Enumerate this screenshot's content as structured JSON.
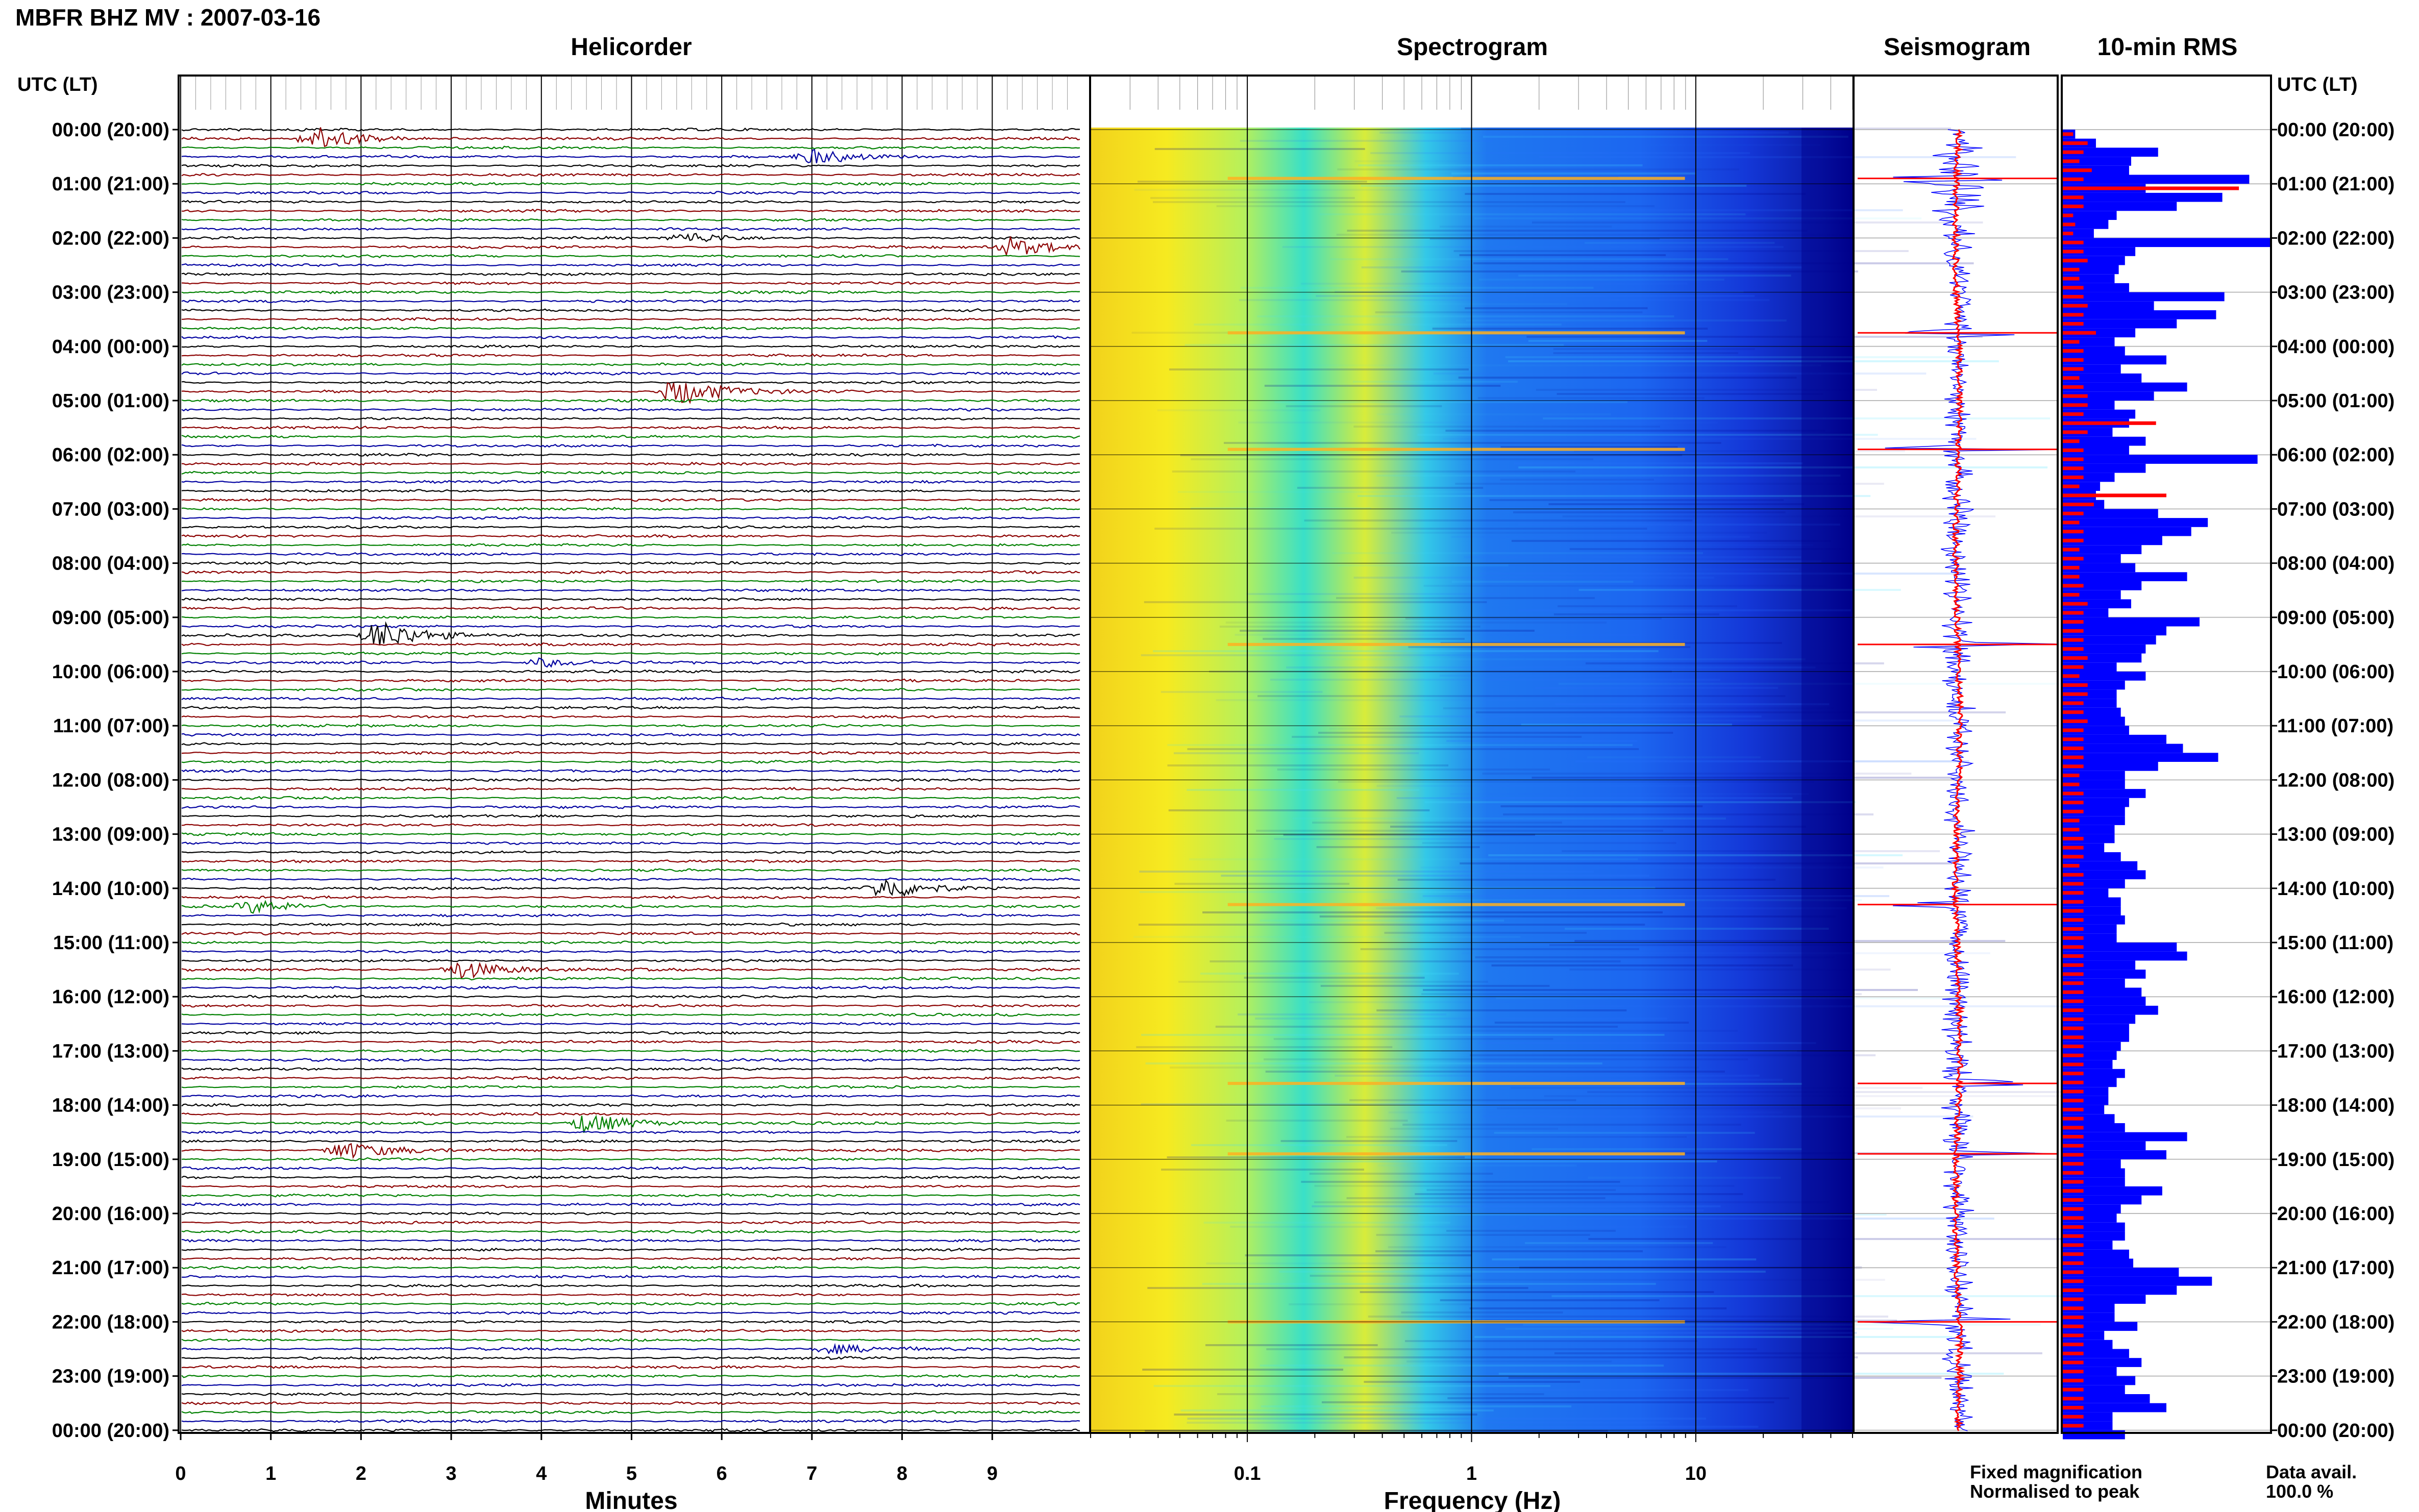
{
  "header": {
    "title": "MBFR BHZ MV : 2007-03-16",
    "utc_header": "UTC (LT)",
    "utc_header_right": "UTC (LT)"
  },
  "panels": {
    "helicorder": "Helicorder",
    "spectrogram": "Spectrogram",
    "seismogram": "Seismogram",
    "rms": "10-min RMS"
  },
  "axes": {
    "minutes_label": "Minutes",
    "frequency_label": "Frequency (Hz)"
  },
  "legend": {
    "fixed": "Fixed magnification",
    "normalised": "Normalised to peak",
    "fixed_color": "#0000ff",
    "normalised_color": "#ff0000"
  },
  "data_avail": {
    "label": "Data avail.",
    "value": "100.0 %"
  },
  "colors": {
    "trace_cycle": [
      "#000000",
      "#8b0000",
      "#008000",
      "#0000a0"
    ],
    "spectro_low": "#00008b",
    "spectro_high": "#ffff00"
  },
  "chart_data": [
    {
      "type": "line",
      "name": "helicorder",
      "xlabel": "Minutes",
      "xlim": [
        0,
        10
      ],
      "x_ticks": [
        "0",
        "1",
        "2",
        "3",
        "4",
        "5",
        "6",
        "7",
        "8",
        "9"
      ],
      "y_ticks": [
        "00:00 (20:00)",
        "01:00 (21:00)",
        "02:00 (22:00)",
        "03:00 (23:00)",
        "04:00 (00:00)",
        "05:00 (01:00)",
        "06:00 (02:00)",
        "07:00 (03:00)",
        "08:00 (04:00)",
        "09:00 (05:00)",
        "10:00 (06:00)",
        "11:00 (07:00)",
        "12:00 (08:00)",
        "13:00 (09:00)",
        "14:00 (10:00)",
        "15:00 (11:00)",
        "16:00 (12:00)",
        "17:00 (13:00)",
        "18:00 (14:00)",
        "19:00 (15:00)",
        "20:00 (16:00)",
        "21:00 (17:00)",
        "22:00 (18:00)",
        "23:00 (19:00)",
        "00:00 (20:00)"
      ],
      "lines_per_hour": 6,
      "events": [
        {
          "line": 1,
          "minute": 1.5,
          "amp": 1.6
        },
        {
          "line": 3,
          "minute": 7.0,
          "amp": 0.9
        },
        {
          "line": 13,
          "minute": 9.2,
          "amp": 1.2
        },
        {
          "line": 12,
          "minute": 5.6,
          "amp": 0.7
        },
        {
          "line": 29,
          "minute": 5.5,
          "amp": 1.8
        },
        {
          "line": 56,
          "minute": 2.2,
          "amp": 2.0
        },
        {
          "line": 59,
          "minute": 4.0,
          "amp": 0.6
        },
        {
          "line": 84,
          "minute": 7.8,
          "amp": 1.4
        },
        {
          "line": 86,
          "minute": 0.8,
          "amp": 0.8
        },
        {
          "line": 93,
          "minute": 3.1,
          "amp": 1.3
        },
        {
          "line": 110,
          "minute": 4.5,
          "amp": 1.4
        },
        {
          "line": 113,
          "minute": 1.8,
          "amp": 1.2
        },
        {
          "line": 135,
          "minute": 7.2,
          "amp": 0.6
        }
      ]
    },
    {
      "type": "heatmap",
      "name": "spectrogram",
      "xlabel": "Frequency (Hz)",
      "x_scale": "log",
      "xlim": [
        0.02,
        50
      ],
      "x_ticks": [
        "0.1",
        "1",
        "10"
      ],
      "bright_rows_hour": [
        0.9,
        3.75,
        5.9,
        9.5,
        14.3,
        17.6,
        18.9,
        22.0
      ]
    },
    {
      "type": "line",
      "name": "seismogram",
      "series": [
        {
          "name": "Fixed magnification"
        },
        {
          "name": "Normalised to peak"
        }
      ]
    },
    {
      "type": "bar",
      "name": "10-min RMS",
      "ylabel": "UTC (LT)",
      "fixed_magnification": [
        0.06,
        0.16,
        0.46,
        0.33,
        0.32,
        0.9,
        0.4,
        0.77,
        0.55,
        0.26,
        0.22,
        0.15,
        1.0,
        0.35,
        0.3,
        0.27,
        0.25,
        0.32,
        0.78,
        0.44,
        0.74,
        0.55,
        0.35,
        0.25,
        0.3,
        0.5,
        0.28,
        0.38,
        0.6,
        0.44,
        0.25,
        0.35,
        0.32,
        0.24,
        0.4,
        0.32,
        0.94,
        0.4,
        0.25,
        0.18,
        0.16,
        0.2,
        0.46,
        0.7,
        0.62,
        0.48,
        0.38,
        0.28,
        0.35,
        0.6,
        0.38,
        0.28,
        0.33,
        0.22,
        0.66,
        0.5,
        0.45,
        0.4,
        0.38,
        0.26,
        0.4,
        0.3,
        0.26,
        0.26,
        0.28,
        0.3,
        0.32,
        0.5,
        0.58,
        0.75,
        0.46,
        0.3,
        0.3,
        0.4,
        0.32,
        0.3,
        0.3,
        0.25,
        0.25,
        0.2,
        0.28,
        0.36,
        0.4,
        0.3,
        0.22,
        0.28,
        0.28,
        0.3,
        0.26,
        0.26,
        0.55,
        0.6,
        0.35,
        0.4,
        0.3,
        0.38,
        0.4,
        0.46,
        0.35,
        0.32,
        0.32,
        0.28,
        0.26,
        0.24,
        0.3,
        0.26,
        0.22,
        0.22,
        0.2,
        0.25,
        0.3,
        0.6,
        0.4,
        0.5,
        0.28,
        0.3,
        0.3,
        0.48,
        0.38,
        0.28,
        0.26,
        0.3,
        0.3,
        0.24,
        0.32,
        0.34,
        0.56,
        0.72,
        0.55,
        0.4,
        0.25,
        0.25,
        0.36,
        0.2,
        0.24,
        0.32,
        0.38,
        0.26,
        0.35,
        0.3,
        0.42,
        0.5,
        0.24,
        0.24,
        0.3
      ],
      "normalised_to_peak": [
        0.05,
        0.12,
        0.1,
        0.08,
        0.14,
        0.1,
        0.85,
        0.1,
        0.1,
        0.05,
        0.06,
        0.05,
        0.1,
        0.1,
        0.12,
        0.08,
        0.08,
        0.1,
        0.1,
        0.12,
        0.1,
        0.1,
        0.16,
        0.08,
        0.1,
        0.1,
        0.1,
        0.08,
        0.1,
        0.12,
        0.12,
        0.1,
        0.45,
        0.12,
        0.08,
        0.1,
        0.1,
        0.1,
        0.1,
        0.08,
        0.5,
        0.15,
        0.1,
        0.08,
        0.1,
        0.1,
        0.08,
        0.1,
        0.08,
        0.08,
        0.1,
        0.08,
        0.12,
        0.1,
        0.1,
        0.1,
        0.1,
        0.1,
        0.12,
        0.1,
        0.08,
        0.12,
        0.12,
        0.1,
        0.1,
        0.12,
        0.1,
        0.1,
        0.1,
        0.1,
        0.1,
        0.08,
        0.08,
        0.1,
        0.1,
        0.1,
        0.08,
        0.08,
        0.1,
        0.1,
        0.1,
        0.08,
        0.1,
        0.1,
        0.1,
        0.1,
        0.1,
        0.1,
        0.1,
        0.1,
        0.1,
        0.1,
        0.1,
        0.1,
        0.1,
        0.1,
        0.1,
        0.1,
        0.1,
        0.1,
        0.1,
        0.1,
        0.1,
        0.1,
        0.1,
        0.1,
        0.1,
        0.1,
        0.1,
        0.1,
        0.1,
        0.1,
        0.1,
        0.1,
        0.1,
        0.1,
        0.1,
        0.1,
        0.1,
        0.1,
        0.1,
        0.1,
        0.1,
        0.1,
        0.1,
        0.1,
        0.1,
        0.1,
        0.1,
        0.1,
        0.1,
        0.1,
        0.1,
        0.1,
        0.1,
        0.1,
        0.1,
        0.1,
        0.1,
        0.1,
        0.1,
        0.1,
        0.1,
        0.1
      ]
    }
  ]
}
